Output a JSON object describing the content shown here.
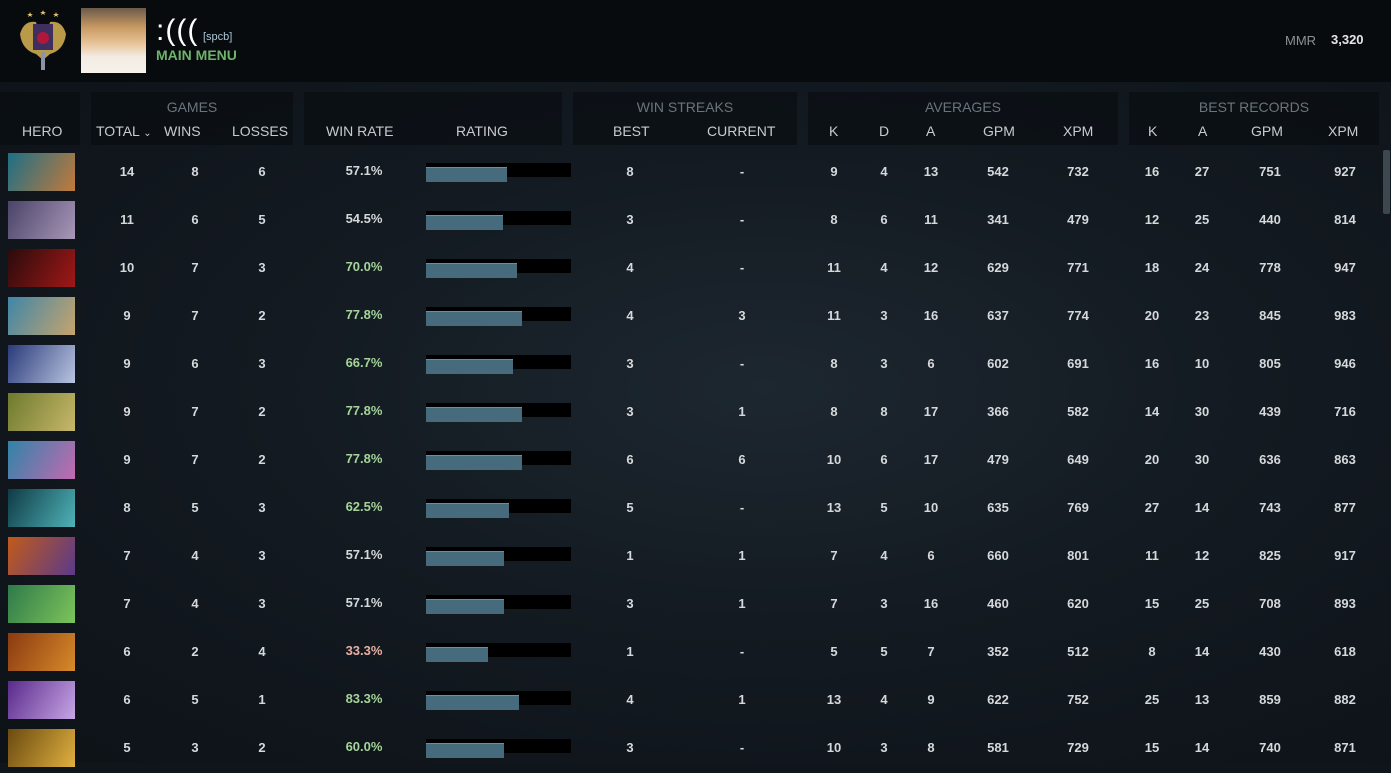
{
  "profile": {
    "name": ":(((",
    "tag": "[spcb]",
    "menu_label": "MAIN MENU",
    "mmr_label": "MMR",
    "mmr_value": "3,320"
  },
  "groups": {
    "games": "GAMES",
    "win_streaks": "WIN STREAKS",
    "averages": "AVERAGES",
    "best_records": "BEST RECORDS"
  },
  "columns": {
    "hero": "HERO",
    "total": "TOTAL",
    "wins": "WINS",
    "losses": "LOSSES",
    "win_rate": "WIN RATE",
    "rating": "RATING",
    "best": "BEST",
    "current": "CURRENT",
    "k": "K",
    "d": "D",
    "a": "A",
    "gpm": "GPM",
    "xpm": "XPM",
    "bk": "K",
    "ba": "A",
    "bgpm": "GPM",
    "bxpm": "XPM"
  },
  "colors": {
    "good": "#a6d39a",
    "bad": "#e8b0a6",
    "neutral": "#d6d9dc",
    "bar": "#456b7c",
    "accent": "#6db36a"
  },
  "rows": [
    {
      "hero_colors": [
        "#1d6f86",
        "#c27a3b"
      ],
      "total": "14",
      "wins": "8",
      "losses": "6",
      "win_rate": "57.1%",
      "rating": 0.56,
      "best": "8",
      "current": "-",
      "k": "9",
      "d": "4",
      "a": "13",
      "gpm": "542",
      "xpm": "732",
      "bk": "16",
      "ba": "27",
      "bgpm": "751",
      "bxpm": "927"
    },
    {
      "hero_colors": [
        "#4a4468",
        "#a897b8"
      ],
      "total": "11",
      "wins": "6",
      "losses": "5",
      "win_rate": "54.5%",
      "rating": 0.53,
      "best": "3",
      "current": "-",
      "k": "8",
      "d": "6",
      "a": "11",
      "gpm": "341",
      "xpm": "479",
      "bk": "12",
      "ba": "25",
      "bgpm": "440",
      "bxpm": "814"
    },
    {
      "hero_colors": [
        "#2a0b0b",
        "#a11818"
      ],
      "total": "10",
      "wins": "7",
      "losses": "3",
      "win_rate": "70.0%",
      "rating": 0.63,
      "best": "4",
      "current": "-",
      "k": "11",
      "d": "4",
      "a": "12",
      "gpm": "629",
      "xpm": "771",
      "bk": "18",
      "ba": "24",
      "bgpm": "778",
      "bxpm": "947"
    },
    {
      "hero_colors": [
        "#3f86a8",
        "#c6a46d"
      ],
      "total": "9",
      "wins": "7",
      "losses": "2",
      "win_rate": "77.8%",
      "rating": 0.66,
      "best": "4",
      "current": "3",
      "k": "11",
      "d": "3",
      "a": "16",
      "gpm": "637",
      "xpm": "774",
      "bk": "20",
      "ba": "23",
      "bgpm": "845",
      "bxpm": "983"
    },
    {
      "hero_colors": [
        "#2a3b7a",
        "#b9c4e0"
      ],
      "total": "9",
      "wins": "6",
      "losses": "3",
      "win_rate": "66.7%",
      "rating": 0.6,
      "best": "3",
      "current": "-",
      "k": "8",
      "d": "3",
      "a": "6",
      "gpm": "602",
      "xpm": "691",
      "bk": "16",
      "ba": "10",
      "bgpm": "805",
      "bxpm": "946"
    },
    {
      "hero_colors": [
        "#6d7a2e",
        "#c8b76a"
      ],
      "total": "9",
      "wins": "7",
      "losses": "2",
      "win_rate": "77.8%",
      "rating": 0.66,
      "best": "3",
      "current": "1",
      "k": "8",
      "d": "8",
      "a": "17",
      "gpm": "366",
      "xpm": "582",
      "bk": "14",
      "ba": "30",
      "bgpm": "439",
      "bxpm": "716"
    },
    {
      "hero_colors": [
        "#2f84a8",
        "#c36ab0"
      ],
      "total": "9",
      "wins": "7",
      "losses": "2",
      "win_rate": "77.8%",
      "rating": 0.66,
      "best": "6",
      "current": "6",
      "k": "10",
      "d": "6",
      "a": "17",
      "gpm": "479",
      "xpm": "649",
      "bk": "20",
      "ba": "30",
      "bgpm": "636",
      "bxpm": "863"
    },
    {
      "hero_colors": [
        "#0f3b45",
        "#4fb3b8"
      ],
      "total": "8",
      "wins": "5",
      "losses": "3",
      "win_rate": "62.5%",
      "rating": 0.57,
      "best": "5",
      "current": "-",
      "k": "13",
      "d": "5",
      "a": "10",
      "gpm": "635",
      "xpm": "769",
      "bk": "27",
      "ba": "14",
      "bgpm": "743",
      "bxpm": "877"
    },
    {
      "hero_colors": [
        "#c25a1a",
        "#5a3a8a"
      ],
      "total": "7",
      "wins": "4",
      "losses": "3",
      "win_rate": "57.1%",
      "rating": 0.54,
      "best": "1",
      "current": "1",
      "k": "7",
      "d": "4",
      "a": "6",
      "gpm": "660",
      "xpm": "801",
      "bk": "11",
      "ba": "12",
      "bgpm": "825",
      "bxpm": "917"
    },
    {
      "hero_colors": [
        "#2e7a4a",
        "#7dc45a"
      ],
      "total": "7",
      "wins": "4",
      "losses": "3",
      "win_rate": "57.1%",
      "rating": 0.54,
      "best": "3",
      "current": "1",
      "k": "7",
      "d": "3",
      "a": "16",
      "gpm": "460",
      "xpm": "620",
      "bk": "15",
      "ba": "25",
      "bgpm": "708",
      "bxpm": "893"
    },
    {
      "hero_colors": [
        "#8a3a10",
        "#d88a2a"
      ],
      "total": "6",
      "wins": "2",
      "losses": "4",
      "win_rate": "33.3%",
      "rating": 0.43,
      "best": "1",
      "current": "-",
      "k": "5",
      "d": "5",
      "a": "7",
      "gpm": "352",
      "xpm": "512",
      "bk": "8",
      "ba": "14",
      "bgpm": "430",
      "bxpm": "618"
    },
    {
      "hero_colors": [
        "#5a2a8a",
        "#c7a6e6"
      ],
      "total": "6",
      "wins": "5",
      "losses": "1",
      "win_rate": "83.3%",
      "rating": 0.64,
      "best": "4",
      "current": "1",
      "k": "13",
      "d": "4",
      "a": "9",
      "gpm": "622",
      "xpm": "752",
      "bk": "25",
      "ba": "13",
      "bgpm": "859",
      "bxpm": "882"
    },
    {
      "hero_colors": [
        "#6a4a10",
        "#e0b040"
      ],
      "total": "5",
      "wins": "3",
      "losses": "2",
      "win_rate": "60.0%",
      "rating": 0.54,
      "best": "3",
      "current": "-",
      "k": "10",
      "d": "3",
      "a": "8",
      "gpm": "581",
      "xpm": "729",
      "bk": "15",
      "ba": "14",
      "bgpm": "740",
      "bxpm": "871"
    }
  ]
}
